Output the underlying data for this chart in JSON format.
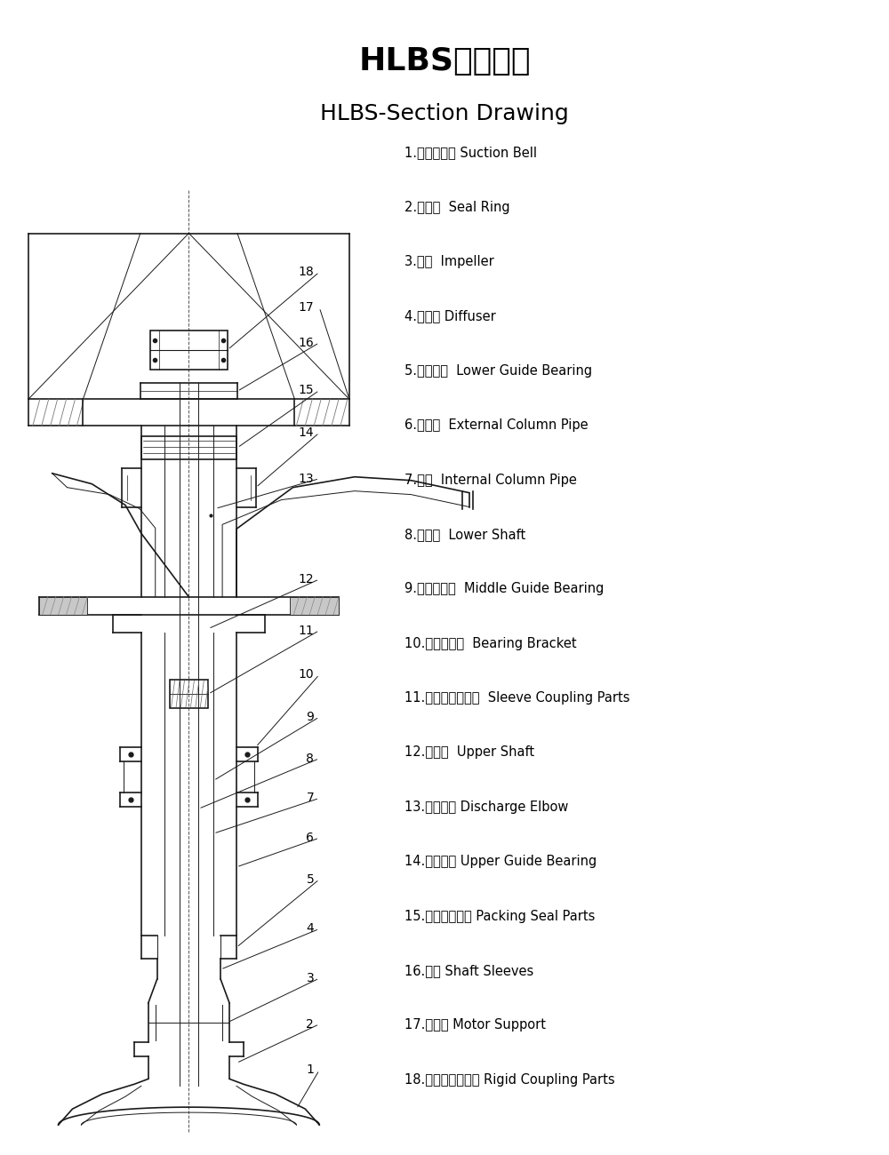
{
  "title_cn": "HLBS型结构图",
  "title_en": "HLBS-Section Drawing",
  "bg_color": "#ffffff",
  "text_color": "#000000",
  "title_cn_fontsize": 26,
  "title_en_fontsize": 18,
  "parts": [
    "1.吸入喇叭口 Suction Bell",
    "2.密封环  Seal Ring",
    "3.叶轮  Impeller",
    "4.导叶体 Diffuser",
    "5.下导轴承  Lower Guide Bearing",
    "6.外接管  External Column Pipe",
    "7.护管  Internal Column Pipe",
    "8.下主轴  Lower Shaft",
    "9.中间导轴承  Middle Guide Bearing",
    "10.中间轴承座  Bearing Bracket",
    "11.套筒联轴器部件  Sleeve Coupling Parts",
    "12.上主轴  Upper Shaft",
    "13.出水弯管 Discharge Elbow",
    "14.上导轴承 Upper Guide Bearing",
    "15.填料密封部件 Packing Seal Parts",
    "16.轴套 Shaft Sleeves",
    "17.电机座 Motor Support",
    "18.刚性联轴器部件 Rigid Coupling Parts"
  ]
}
